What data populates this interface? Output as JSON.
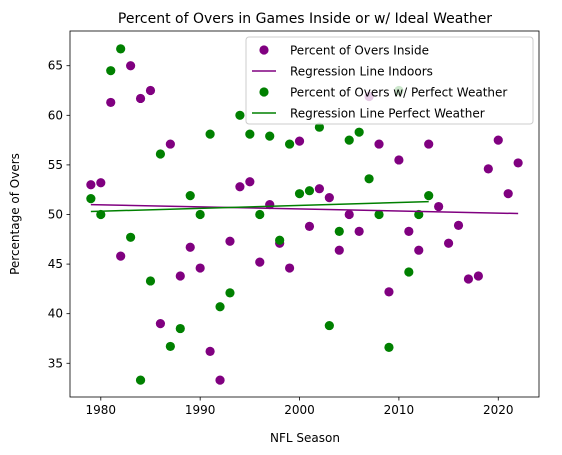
{
  "chart_data": {
    "type": "scatter",
    "title": "Percent of Overs in Games Inside or w/ Ideal Weather",
    "xlabel": "NFL Season",
    "ylabel": "Percentage of Overs",
    "xlim": [
      1976.9,
      2024.1
    ],
    "ylim": [
      31.6,
      68.5
    ],
    "xticks": [
      "1980",
      "1990",
      "2000",
      "2010",
      "2020"
    ],
    "yticks": [
      "35",
      "40",
      "45",
      "50",
      "55",
      "60",
      "65"
    ],
    "legend_position": "top-right",
    "series": [
      {
        "name": "Percent of Overs Inside",
        "kind": "scatter",
        "color": "#800080",
        "points": [
          [
            1979,
            53.0
          ],
          [
            1980,
            53.2
          ],
          [
            1981,
            61.3
          ],
          [
            1982,
            45.8
          ],
          [
            1983,
            65.0
          ],
          [
            1984,
            61.7
          ],
          [
            1985,
            62.5
          ],
          [
            1986,
            39.0
          ],
          [
            1987,
            57.1
          ],
          [
            1988,
            43.8
          ],
          [
            1989,
            46.7
          ],
          [
            1990,
            44.6
          ],
          [
            1991,
            36.2
          ],
          [
            1992,
            33.3
          ],
          [
            1993,
            47.3
          ],
          [
            1994,
            52.8
          ],
          [
            1995,
            53.3
          ],
          [
            1996,
            45.2
          ],
          [
            1997,
            51.0
          ],
          [
            1998,
            47.1
          ],
          [
            1999,
            44.6
          ],
          [
            2000,
            57.4
          ],
          [
            2001,
            48.8
          ],
          [
            2002,
            52.6
          ],
          [
            2003,
            51.7
          ],
          [
            2004,
            46.4
          ],
          [
            2005,
            50.0
          ],
          [
            2006,
            48.3
          ],
          [
            2007,
            61.9
          ],
          [
            2008,
            57.1
          ],
          [
            2009,
            42.2
          ],
          [
            2010,
            55.5
          ],
          [
            2011,
            48.3
          ],
          [
            2012,
            46.4
          ],
          [
            2013,
            57.1
          ],
          [
            2014,
            50.8
          ],
          [
            2015,
            47.1
          ],
          [
            2016,
            48.9
          ],
          [
            2017,
            43.5
          ],
          [
            2018,
            43.8
          ],
          [
            2019,
            54.6
          ],
          [
            2020,
            57.5
          ],
          [
            2021,
            52.1
          ],
          [
            2022,
            55.2
          ]
        ]
      },
      {
        "name": "Regression Line Indoors",
        "kind": "line",
        "color": "#800080",
        "points": [
          [
            1979,
            51.0
          ],
          [
            2022,
            50.1
          ]
        ]
      },
      {
        "name": "Percent of Overs w/ Perfect Weather",
        "kind": "scatter",
        "color": "#008000",
        "points": [
          [
            1979,
            51.6
          ],
          [
            1980,
            50.0
          ],
          [
            1981,
            64.5
          ],
          [
            1982,
            66.7
          ],
          [
            1983,
            47.7
          ],
          [
            1984,
            33.3
          ],
          [
            1985,
            43.3
          ],
          [
            1986,
            56.1
          ],
          [
            1987,
            36.7
          ],
          [
            1988,
            38.5
          ],
          [
            1989,
            51.9
          ],
          [
            1990,
            50.0
          ],
          [
            1991,
            58.1
          ],
          [
            1992,
            40.7
          ],
          [
            1993,
            42.1
          ],
          [
            1994,
            60.0
          ],
          [
            1995,
            58.1
          ],
          [
            1996,
            50.0
          ],
          [
            1997,
            57.9
          ],
          [
            1998,
            47.4
          ],
          [
            1999,
            57.1
          ],
          [
            2000,
            52.1
          ],
          [
            2001,
            52.4
          ],
          [
            2002,
            58.8
          ],
          [
            2003,
            38.8
          ],
          [
            2004,
            48.3
          ],
          [
            2005,
            57.5
          ],
          [
            2006,
            58.3
          ],
          [
            2007,
            53.6
          ],
          [
            2008,
            50.0
          ],
          [
            2009,
            36.6
          ],
          [
            2010,
            62.5
          ],
          [
            2011,
            44.2
          ],
          [
            2012,
            50.0
          ],
          [
            2013,
            51.9
          ]
        ]
      },
      {
        "name": "Regression Line Perfect Weather",
        "kind": "line",
        "color": "#008000",
        "points": [
          [
            1979,
            50.3
          ],
          [
            2013,
            51.3
          ]
        ]
      }
    ]
  }
}
